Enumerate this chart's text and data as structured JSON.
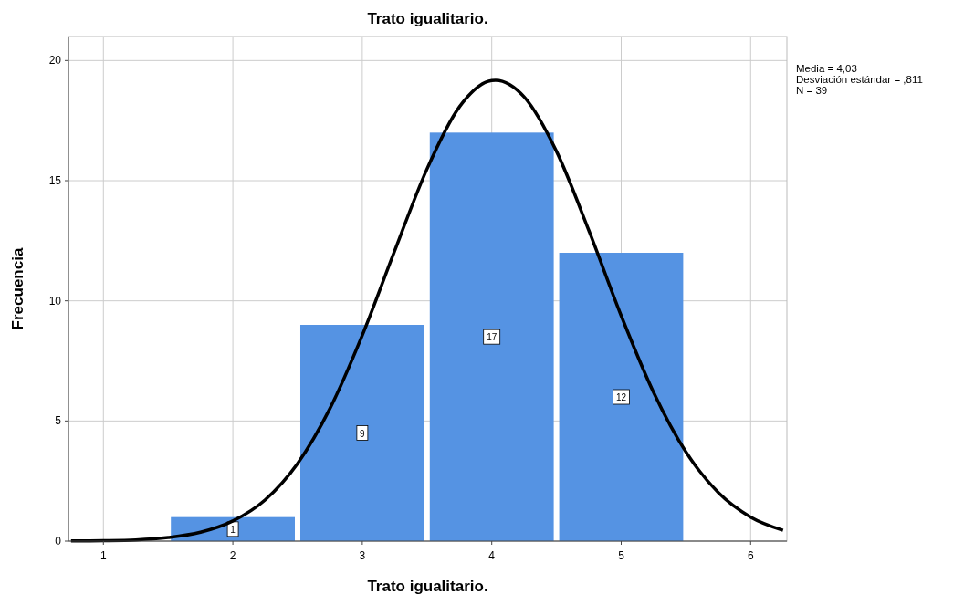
{
  "chart_data": {
    "type": "histogram",
    "title": "Trato igualitario.",
    "xlabel": "Trato igualitario.",
    "ylabel": "Frecuencia",
    "bins": [
      1.5,
      2.5,
      3.5,
      4.5,
      5.5
    ],
    "series": [
      {
        "color": "#5593e3",
        "values": [
          1,
          9,
          17,
          12
        ],
        "value_labels": [
          "1",
          "9",
          "17",
          "12"
        ]
      },
      {
        "type": "line",
        "color": "#000000",
        "x": [
          0.75,
          1,
          1.25,
          1.5,
          1.75,
          2,
          2.25,
          2.5,
          2.75,
          3,
          3.25,
          3.5,
          3.75,
          4,
          4.03,
          4.25,
          4.5,
          4.75,
          5,
          5.25,
          5.5,
          5.75,
          6,
          6.25
        ],
        "values": [
          0.01,
          0.02,
          0.05,
          0.15,
          0.37,
          0.84,
          1.72,
          3.23,
          5.52,
          8.57,
          12.08,
          15.49,
          18.07,
          19.17,
          19.18,
          18.49,
          16.22,
          12.93,
          9.38,
          6.19,
          3.71,
          2.02,
          1.0,
          0.45
        ]
      }
    ],
    "xlim": [
      0.73,
      6.28
    ],
    "ylim": [
      0,
      21
    ],
    "xticks": [
      1,
      2,
      3,
      4,
      5,
      6
    ],
    "yticks": [
      0,
      5,
      10,
      15,
      20
    ],
    "grid": true,
    "annotations": [
      "Media = 4,03",
      "Desviación estándar = ,811",
      "N = 39"
    ]
  }
}
